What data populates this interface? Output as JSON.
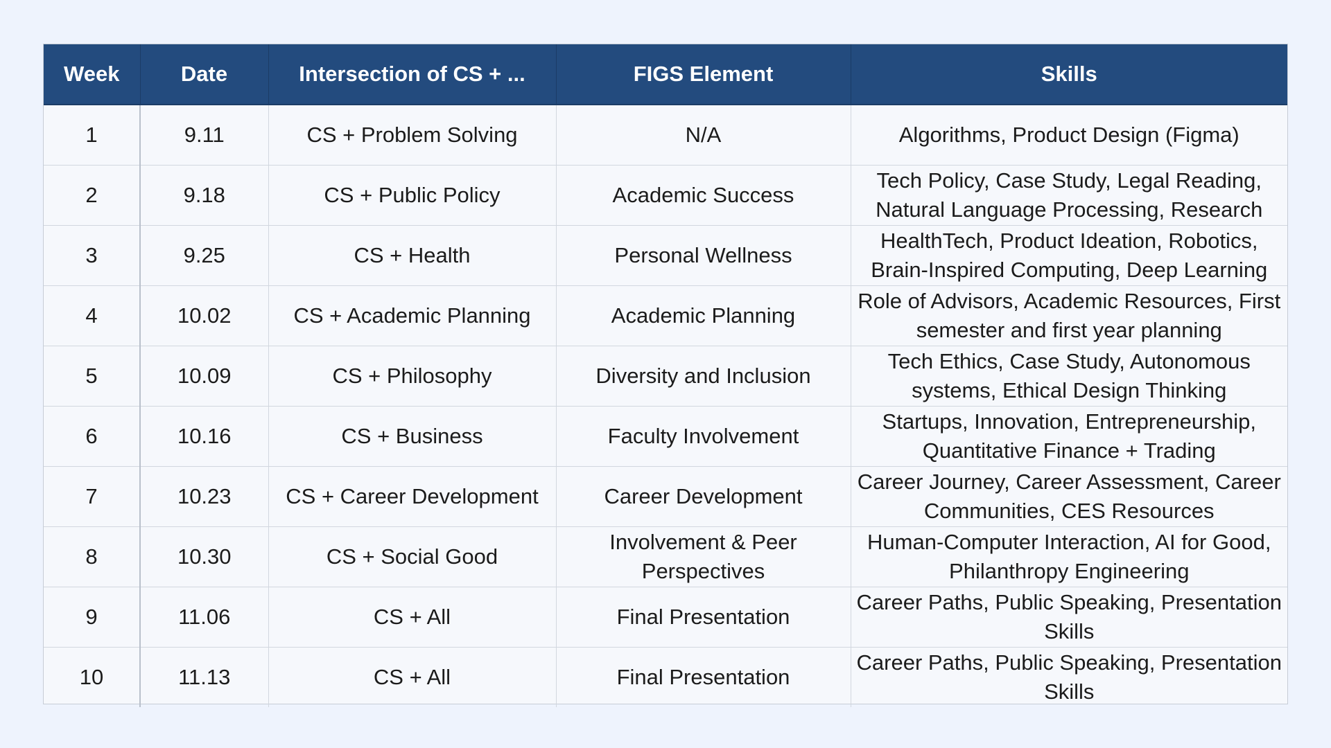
{
  "table": {
    "headers": {
      "week": "Week",
      "date": "Date",
      "intersection": "Intersection of CS + ...",
      "figs": "FIGS Element",
      "skills": "Skills"
    },
    "rows": [
      {
        "week": "1",
        "date": "9.11",
        "intersection": "CS + Problem Solving",
        "figs": "N/A",
        "skills": "Algorithms, Product Design (Figma)"
      },
      {
        "week": "2",
        "date": "9.18",
        "intersection": "CS + Public Policy",
        "figs": "Academic Success",
        "skills": "Tech Policy, Case Study, Legal Reading, Natural Language Processing, Research"
      },
      {
        "week": "3",
        "date": "9.25",
        "intersection": "CS + Health",
        "figs": "Personal Wellness",
        "skills": "HealthTech, Product Ideation, Robotics, Brain-Inspired Computing, Deep Learning"
      },
      {
        "week": "4",
        "date": "10.02",
        "intersection": "CS + Academic Planning",
        "figs": "Academic Planning",
        "skills": "Role of Advisors, Academic Resources, First semester and first year planning"
      },
      {
        "week": "5",
        "date": "10.09",
        "intersection": "CS + Philosophy",
        "figs": "Diversity and Inclusion",
        "skills": "Tech Ethics, Case Study, Autonomous systems, Ethical Design Thinking"
      },
      {
        "week": "6",
        "date": "10.16",
        "intersection": "CS + Business",
        "figs": "Faculty Involvement",
        "skills": "Startups, Innovation, Entrepreneurship, Quantitative Finance + Trading"
      },
      {
        "week": "7",
        "date": "10.23",
        "intersection": "CS + Career Development",
        "figs": "Career Development",
        "skills": "Career Journey, Career Assessment, Career Communities, CES Resources"
      },
      {
        "week": "8",
        "date": "10.30",
        "intersection": "CS + Social Good",
        "figs": "Involvement & Peer Perspectives",
        "skills": "Human-Computer Interaction, AI for Good, Philanthropy Engineering"
      },
      {
        "week": "9",
        "date": "11.06",
        "intersection": "CS + All",
        "figs": "Final Presentation",
        "skills": "Career Paths, Public Speaking, Presentation Skills"
      },
      {
        "week": "10",
        "date": "11.13",
        "intersection": "CS + All",
        "figs": "Final Presentation",
        "skills": "Career Paths, Public Speaking, Presentation Skills"
      }
    ]
  },
  "colors": {
    "header_bg": "#234b7e",
    "header_text": "#ffffff",
    "page_bg": "#eef3fd",
    "cell_bg": "#f6f8fc"
  }
}
